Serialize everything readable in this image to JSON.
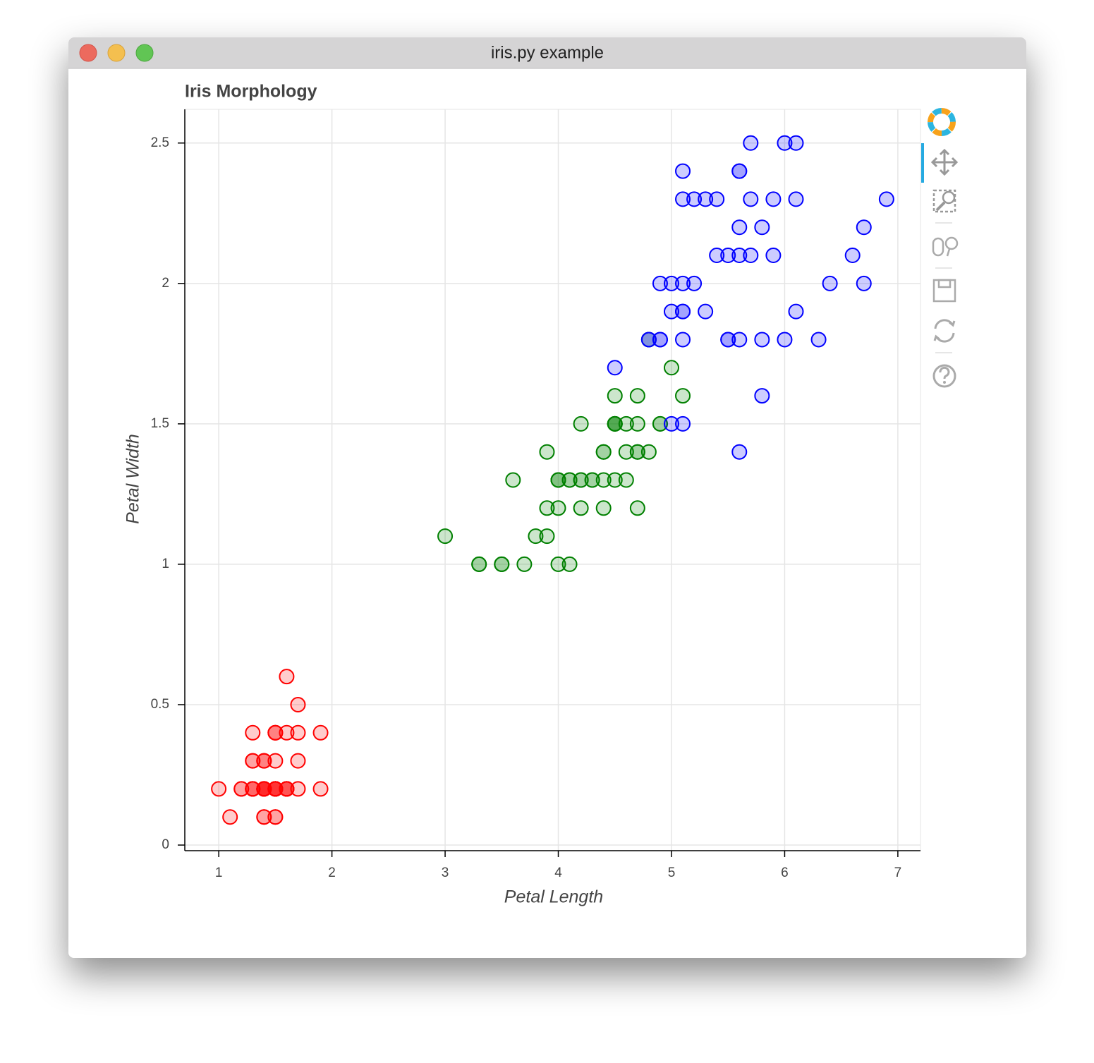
{
  "window": {
    "title": "iris.py example"
  },
  "chart_data": {
    "type": "scatter",
    "title": "Iris Morphology",
    "x_label": "Petal Length",
    "y_label": "Petal Width",
    "xlim": [
      0.7,
      7.2
    ],
    "ylim": [
      -0.02,
      2.62
    ],
    "xticks": [
      1,
      2,
      3,
      4,
      5,
      6,
      7
    ],
    "yticks": [
      0,
      0.5,
      1,
      1.5,
      2,
      2.5
    ],
    "grid": true,
    "fill_alpha": 0.2,
    "series": [
      {
        "color": "#ff0000",
        "x": [
          1.4,
          1.4,
          1.3,
          1.5,
          1.4,
          1.7,
          1.4,
          1.5,
          1.4,
          1.5,
          1.5,
          1.6,
          1.4,
          1.1,
          1.2,
          1.5,
          1.3,
          1.4,
          1.7,
          1.5,
          1.7,
          1.5,
          1.0,
          1.7,
          1.9,
          1.6,
          1.6,
          1.5,
          1.4,
          1.6,
          1.6,
          1.5,
          1.5,
          1.4,
          1.5,
          1.2,
          1.3,
          1.4,
          1.3,
          1.5,
          1.3,
          1.3,
          1.3,
          1.6,
          1.9,
          1.4,
          1.6,
          1.4,
          1.5,
          1.4
        ],
        "values": [
          0.2,
          0.2,
          0.2,
          0.2,
          0.2,
          0.4,
          0.3,
          0.2,
          0.2,
          0.1,
          0.2,
          0.2,
          0.1,
          0.1,
          0.2,
          0.4,
          0.4,
          0.3,
          0.3,
          0.3,
          0.2,
          0.4,
          0.2,
          0.5,
          0.2,
          0.2,
          0.4,
          0.2,
          0.2,
          0.2,
          0.2,
          0.4,
          0.1,
          0.2,
          0.2,
          0.2,
          0.2,
          0.1,
          0.2,
          0.2,
          0.3,
          0.3,
          0.2,
          0.6,
          0.4,
          0.3,
          0.2,
          0.2,
          0.2,
          0.2
        ]
      },
      {
        "color": "#008000",
        "x": [
          4.7,
          4.5,
          4.9,
          4.0,
          4.6,
          4.5,
          4.7,
          3.3,
          4.6,
          3.9,
          3.5,
          4.2,
          4.0,
          4.7,
          3.6,
          4.4,
          4.5,
          4.1,
          4.5,
          3.9,
          4.8,
          4.0,
          4.9,
          4.7,
          4.3,
          4.4,
          4.8,
          5.0,
          4.5,
          3.5,
          3.8,
          3.7,
          3.9,
          5.1,
          4.5,
          4.5,
          4.7,
          4.4,
          4.1,
          4.0,
          4.4,
          4.6,
          4.0,
          3.3,
          4.2,
          4.2,
          4.2,
          4.3,
          3.0,
          4.1
        ],
        "values": [
          1.4,
          1.5,
          1.5,
          1.3,
          1.5,
          1.3,
          1.6,
          1.0,
          1.3,
          1.4,
          1.0,
          1.5,
          1.0,
          1.4,
          1.3,
          1.4,
          1.5,
          1.0,
          1.5,
          1.1,
          1.8,
          1.3,
          1.5,
          1.2,
          1.3,
          1.4,
          1.4,
          1.7,
          1.5,
          1.0,
          1.1,
          1.0,
          1.2,
          1.6,
          1.5,
          1.6,
          1.5,
          1.3,
          1.3,
          1.3,
          1.2,
          1.4,
          1.2,
          1.0,
          1.3,
          1.2,
          1.3,
          1.3,
          1.1,
          1.3
        ]
      },
      {
        "color": "#0000ff",
        "x": [
          6.0,
          5.1,
          5.9,
          5.6,
          5.8,
          6.6,
          4.5,
          6.3,
          5.8,
          6.1,
          5.1,
          5.3,
          5.5,
          5.0,
          5.1,
          5.3,
          5.5,
          6.7,
          6.9,
          5.0,
          5.7,
          4.9,
          6.7,
          4.9,
          5.7,
          6.0,
          4.8,
          4.9,
          5.6,
          5.8,
          6.1,
          6.4,
          5.6,
          5.1,
          5.6,
          6.1,
          5.6,
          5.5,
          4.8,
          5.4,
          5.6,
          5.1,
          5.1,
          5.9,
          5.7,
          5.2,
          5.0,
          5.2,
          5.4,
          5.1
        ],
        "values": [
          2.5,
          1.9,
          2.1,
          1.8,
          2.2,
          2.1,
          1.7,
          1.8,
          1.8,
          2.5,
          2.0,
          1.9,
          2.1,
          2.0,
          2.4,
          2.3,
          1.8,
          2.2,
          2.3,
          1.5,
          2.3,
          2.0,
          2.0,
          1.8,
          2.1,
          1.8,
          1.8,
          1.8,
          2.1,
          1.6,
          1.9,
          2.0,
          2.2,
          1.5,
          1.4,
          2.3,
          2.4,
          1.8,
          1.8,
          2.1,
          2.4,
          2.3,
          1.9,
          2.3,
          2.5,
          2.3,
          1.9,
          2.0,
          2.3,
          1.8
        ]
      }
    ]
  }
}
